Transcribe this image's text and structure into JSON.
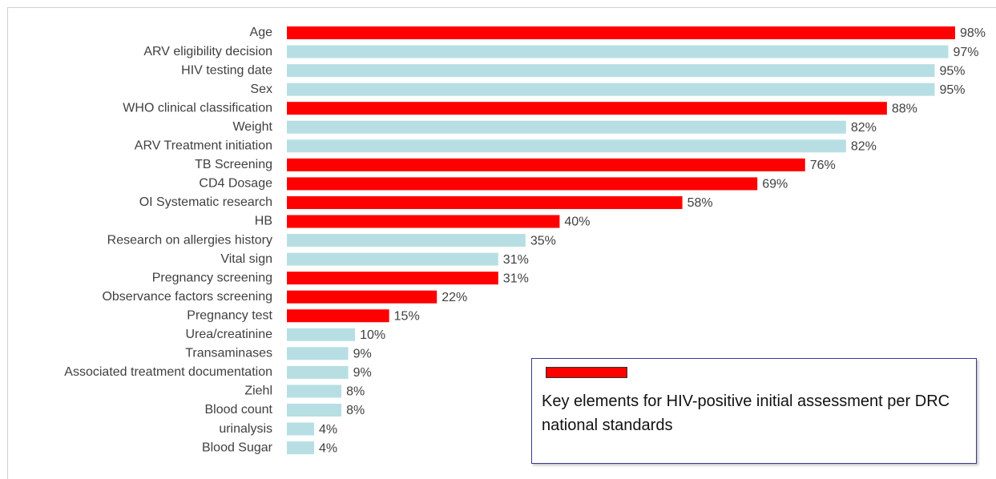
{
  "chart_data": {
    "type": "bar",
    "orientation": "horizontal",
    "categories": [
      "Age",
      "ARV eligibility decision",
      "HIV testing date",
      "Sex",
      "WHO clinical classification",
      "Weight",
      "ARV Treatment initiation",
      "TB Screening",
      "CD4 Dosage",
      "OI Systematic research",
      "HB",
      "Research on allergies history",
      "Vital sign",
      "Pregnancy screening",
      "Observance factors screening",
      "Pregnancy test",
      "Urea/creatinine",
      "Transaminases",
      "Associated treatment documentation",
      "Ziehl",
      "Blood count",
      "urinalysis",
      "Blood Sugar"
    ],
    "values": [
      98,
      97,
      95,
      95,
      88,
      82,
      82,
      76,
      69,
      58,
      40,
      35,
      31,
      31,
      22,
      15,
      10,
      9,
      9,
      8,
      8,
      4,
      4
    ],
    "value_labels": [
      "98%",
      "97%",
      "95%",
      "95%",
      "88%",
      "82%",
      "82%",
      "76%",
      "69%",
      "58%",
      "40%",
      "35%",
      "31%",
      "31%",
      "22%",
      "15%",
      "10%",
      "9%",
      "9%",
      "8%",
      "8%",
      "4%",
      "4%"
    ],
    "colors": [
      "#ff0000",
      "#b7dfe3",
      "#b7dfe3",
      "#b7dfe3",
      "#ff0000",
      "#b7dfe3",
      "#b7dfe3",
      "#ff0000",
      "#ff0000",
      "#ff0000",
      "#ff0000",
      "#b7dfe3",
      "#b7dfe3",
      "#ff0000",
      "#ff0000",
      "#ff0000",
      "#b7dfe3",
      "#b7dfe3",
      "#b7dfe3",
      "#b7dfe3",
      "#b7dfe3",
      "#b7dfe3",
      "#b7dfe3"
    ],
    "xlim": [
      0,
      100
    ],
    "legend": {
      "label": "Key elements for HIV-positive initial assessment per DRC national standards",
      "color": "#ff0000"
    }
  }
}
